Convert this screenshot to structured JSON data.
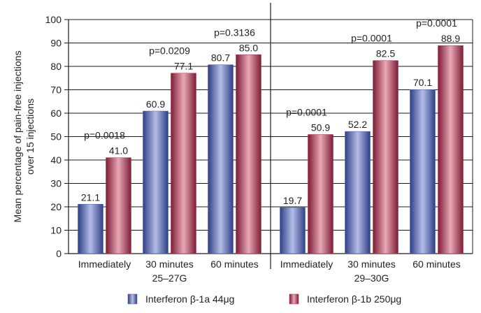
{
  "chart_data": {
    "type": "bar",
    "ylabel": "Mean percentage of pain-free injections over 15 injections",
    "ylabel_lines": [
      "Mean percentage of pain-free injections",
      "over 15 injections"
    ],
    "ylim": [
      0,
      100
    ],
    "yticks": [
      0,
      10,
      20,
      30,
      40,
      50,
      60,
      70,
      80,
      90,
      100
    ],
    "grid": true,
    "legend_position": "bottom",
    "groups": [
      {
        "label": "25–27G",
        "categories": [
          "Immediately",
          "30 minutes",
          "60 minutes"
        ],
        "p_values": [
          "p=0.0018",
          "p=0.0209",
          "p=0.3136"
        ]
      },
      {
        "label": "29–30G",
        "categories": [
          "Immediately",
          "30 minutes",
          "60 minutes"
        ],
        "p_values": [
          "p=0.0001",
          "p=0.0001",
          "p=0.0001"
        ]
      }
    ],
    "series": [
      {
        "name": "Interferon β-1a 44μg",
        "color": "#4a5aa6",
        "values": [
          21.1,
          60.9,
          80.7,
          19.7,
          52.2,
          70.1
        ]
      },
      {
        "name": "Interferon β-1b 250μg",
        "color": "#a8344e",
        "values": [
          41.0,
          77.1,
          85.0,
          50.9,
          82.5,
          88.9
        ]
      }
    ]
  }
}
